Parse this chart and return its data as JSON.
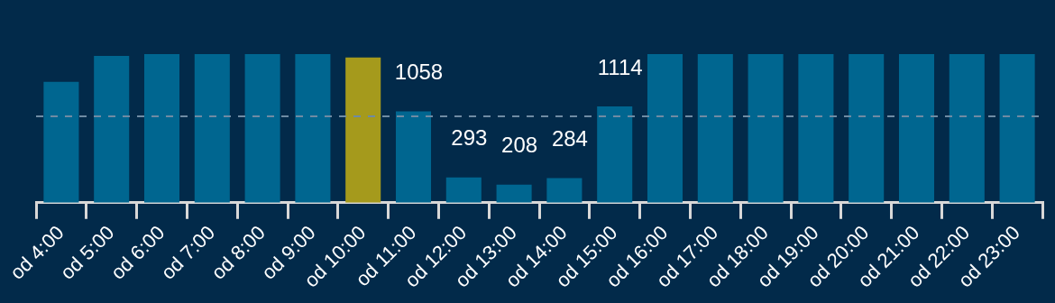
{
  "chart_data": {
    "type": "bar",
    "categories": [
      "od 4:00",
      "od 5:00",
      "od 6:00",
      "od 7:00",
      "od 8:00",
      "od 9:00",
      "od 10:00",
      "od 11:00",
      "od 12:00",
      "od 13:00",
      "od 14:00",
      "od 15:00",
      "od 16:00",
      "od 17:00",
      "od 18:00",
      "od 19:00",
      "od 20:00",
      "od 21:00",
      "od 22:00",
      "od 23:00"
    ],
    "values": [
      1400,
      1700,
      1720,
      1720,
      1720,
      1720,
      1680,
      1058,
      293,
      208,
      284,
      1114,
      1720,
      1720,
      1720,
      1720,
      1720,
      1720,
      1720,
      1720
    ],
    "colors": [
      "#006690",
      "#006690",
      "#006690",
      "#006690",
      "#006690",
      "#006690",
      "#a59a1c",
      "#006690",
      "#006690",
      "#006690",
      "#006690",
      "#006690",
      "#006690",
      "#006690",
      "#006690",
      "#006690",
      "#006690",
      "#006690",
      "#006690",
      "#006690"
    ],
    "value_labels": [
      null,
      null,
      null,
      null,
      null,
      null,
      null,
      "1058",
      "293",
      "208",
      "284",
      "1114",
      null,
      null,
      null,
      null,
      null,
      null,
      null,
      null
    ],
    "ylim": [
      0,
      1720
    ],
    "ref_lines": [
      {
        "axis": "y",
        "value": 1000,
        "color": "#6f8ba3",
        "line_style": "dashed"
      }
    ],
    "tick_labels": "x"
  }
}
